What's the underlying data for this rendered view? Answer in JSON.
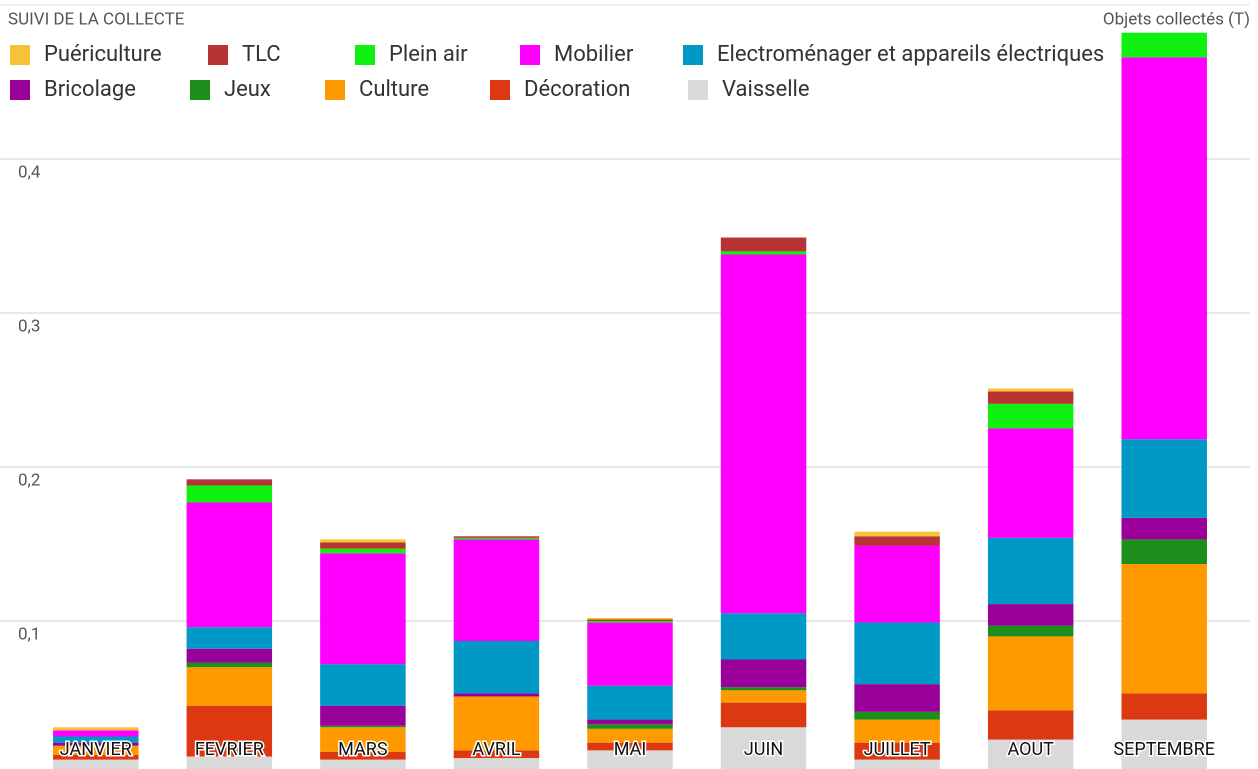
{
  "chart_data": {
    "type": "stacked_bar",
    "title": "SUIVI DE LA COLLECTE",
    "y_axis_label": "Objets collectés (T)",
    "categories": [
      "JANVIER",
      "FEVRIER",
      "MARS",
      "AVRIL",
      "MAI",
      "JUIN",
      "JUILLET",
      "AOUT",
      "SEPTEMBRE"
    ],
    "series": [
      {
        "name": "Puériculture",
        "color": "#f6c338",
        "values": [
          0.002,
          0,
          0.002,
          0,
          0.001,
          0,
          0.003,
          0.002,
          0
        ]
      },
      {
        "name": "TLC",
        "color": "#b83434",
        "values": [
          0,
          0.004,
          0.004,
          0.001,
          0.001,
          0.009,
          0.006,
          0.008,
          0
        ]
      },
      {
        "name": "Plein air",
        "color": "#11f111",
        "values": [
          0,
          0.011,
          0.003,
          0.001,
          0.001,
          0.002,
          0,
          0.016,
          0.016
        ]
      },
      {
        "name": "Mobilier",
        "color": "#ff00ff",
        "values": [
          0.004,
          0.081,
          0.072,
          0.066,
          0.041,
          0.233,
          0.05,
          0.071,
          0.248
        ]
      },
      {
        "name": "Electroménager et appareils électriques",
        "color": "#0099c6",
        "values": [
          0.004,
          0.014,
          0.027,
          0.034,
          0.022,
          0.03,
          0.04,
          0.043,
          0.051
        ]
      },
      {
        "name": "Bricolage",
        "color": "#990099",
        "values": [
          0.002,
          0.009,
          0.013,
          0.002,
          0.003,
          0.018,
          0.018,
          0.014,
          0.014
        ]
      },
      {
        "name": "Jeux",
        "color": "#1b8e1b",
        "values": [
          0,
          0.003,
          0.001,
          0,
          0.003,
          0.002,
          0.005,
          0.007,
          0.016
        ]
      },
      {
        "name": "Culture",
        "color": "#ff9900",
        "values": [
          0.006,
          0.025,
          0.016,
          0.035,
          0.009,
          0.008,
          0.015,
          0.048,
          0.084
        ]
      },
      {
        "name": "Décoration",
        "color": "#dc3912",
        "values": [
          0.003,
          0.033,
          0.005,
          0.005,
          0.005,
          0.016,
          0.011,
          0.019,
          0.017
        ]
      },
      {
        "name": "Vaisselle",
        "color": "#d9d9d9",
        "values": [
          0.01,
          0.012,
          0.01,
          0.011,
          0.016,
          0.031,
          0.01,
          0.023,
          0.036
        ]
      }
    ],
    "ylim": [
      0,
      0.5
    ],
    "yticks": [
      {
        "value": 0.1,
        "label": "0,1"
      },
      {
        "value": 0.2,
        "label": "0,2"
      },
      {
        "value": 0.3,
        "label": "0,3"
      },
      {
        "value": 0.4,
        "label": "0,4"
      }
    ],
    "grid": true
  }
}
